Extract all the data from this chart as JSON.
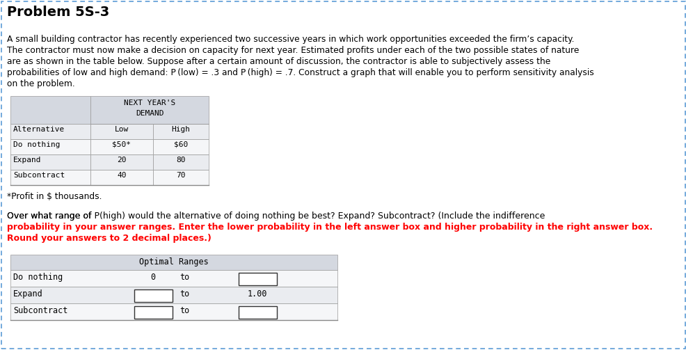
{
  "title": "Problem 5S-3",
  "para_lines": [
    "A small building contractor has recently experienced two successive years in which work opportunities exceeded the firm’s capacity.",
    "The contractor must now make a decision on capacity for next year. Estimated profits under each of the two possible states of nature",
    "are as shown in the table below. Suppose after a certain amount of discussion, the contractor is able to subjectively assess the",
    "probabilities of low and high demand: P (low) = .3 and P (high) = .7. Construct a graph that will enable you to perform sensitivity analysis",
    "on the problem."
  ],
  "table_header_top": "NEXT YEAR'S",
  "table_header_bottom": "DEMAND",
  "table_col_headers": [
    "Alternative",
    "Low",
    "High"
  ],
  "table_rows": [
    [
      "Do nothing",
      "$50*",
      "$60"
    ],
    [
      "Expand",
      "20",
      "80"
    ],
    [
      "Subcontract",
      "40",
      "70"
    ]
  ],
  "footnote": "*Profit in $ thousands.",
  "q_line1": "Over what range of P(high) would the alternative of doing nothing be best? Expand? Subcontract? (Include the indifference",
  "q_line2": "probability in your answer ranges. Enter the lower probability in the left answer box and higher probability in the right answer box.",
  "q_line3": "Round your answers to 2 decimal places.)",
  "q_normal_end": "Over what range of P(high) would the alternative of doing nothing be best? Expand? Subcontract? ",
  "q_bold_start": "(Include the indifference",
  "optimal_title": "Optimal Ranges",
  "opt_labels": [
    "Do nothing",
    "Expand",
    "Subcontract"
  ],
  "border_color": "#5b9bd5",
  "bg_color": "#ffffff",
  "table_header_bg": "#d0d4dc",
  "table_col_header_bg": "#d0d4dc",
  "table_row_bg_even": "#ffffff",
  "table_row_bg_odd": "#eaeaea",
  "opt_header_bg": "#d0d4dc",
  "opt_row_bg_even": "#ffffff",
  "opt_row_bg_odd": "#eaeaea"
}
